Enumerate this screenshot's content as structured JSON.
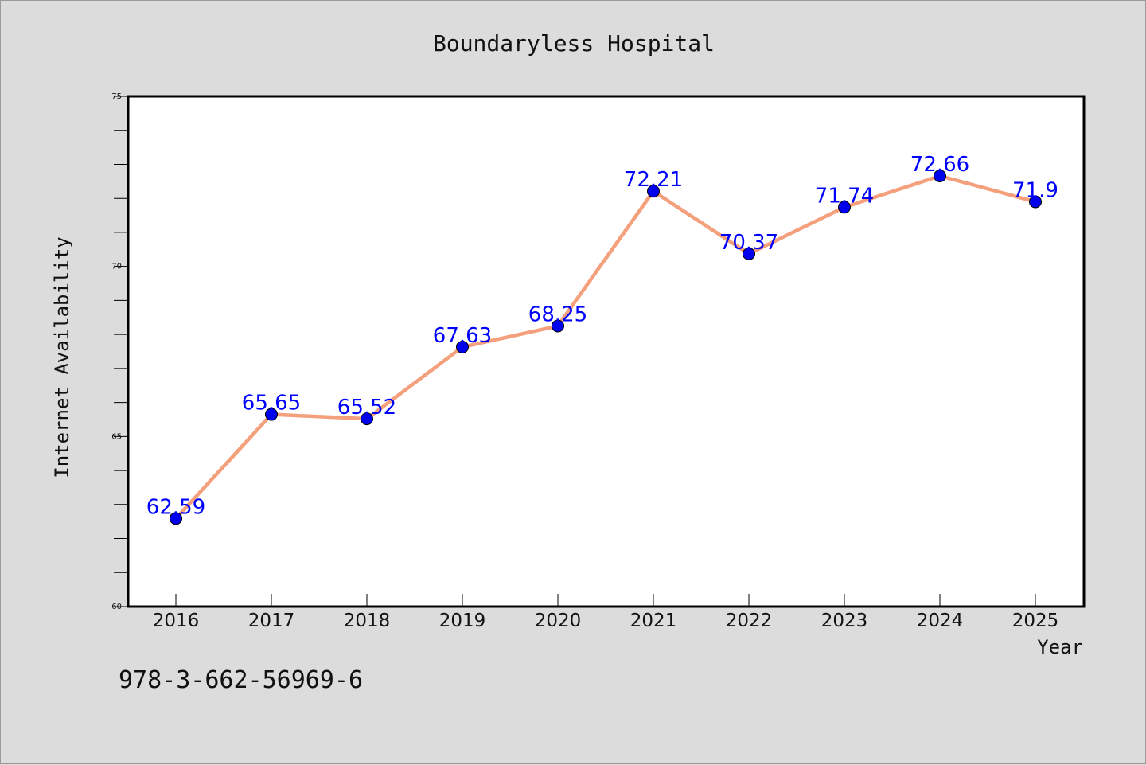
{
  "chart_data": {
    "type": "line",
    "title": "Boundaryless Hospital",
    "xlabel": "Year",
    "ylabel": "Internet Availability",
    "categories": [
      "2016",
      "2017",
      "2018",
      "2019",
      "2020",
      "2021",
      "2022",
      "2023",
      "2024",
      "2025"
    ],
    "series": [
      {
        "values": [
          62.59,
          65.65,
          65.52,
          67.63,
          68.25,
          72.21,
          70.37,
          71.74,
          72.66,
          71.9
        ],
        "data_labels": [
          "62.59",
          "65.65",
          "65.52",
          "67.63",
          "68.25",
          "72.21",
          "70.37",
          "71.74",
          "72.66",
          "71.9"
        ],
        "line_color": "#f4a07c",
        "marker_color": "#0000ee"
      }
    ],
    "ylim": [
      60,
      75
    ],
    "y_ticks": [
      "60",
      "65",
      "70",
      "75"
    ],
    "grid": false,
    "legend": false
  },
  "footer": {
    "code": "978-3-662-56969-6"
  }
}
